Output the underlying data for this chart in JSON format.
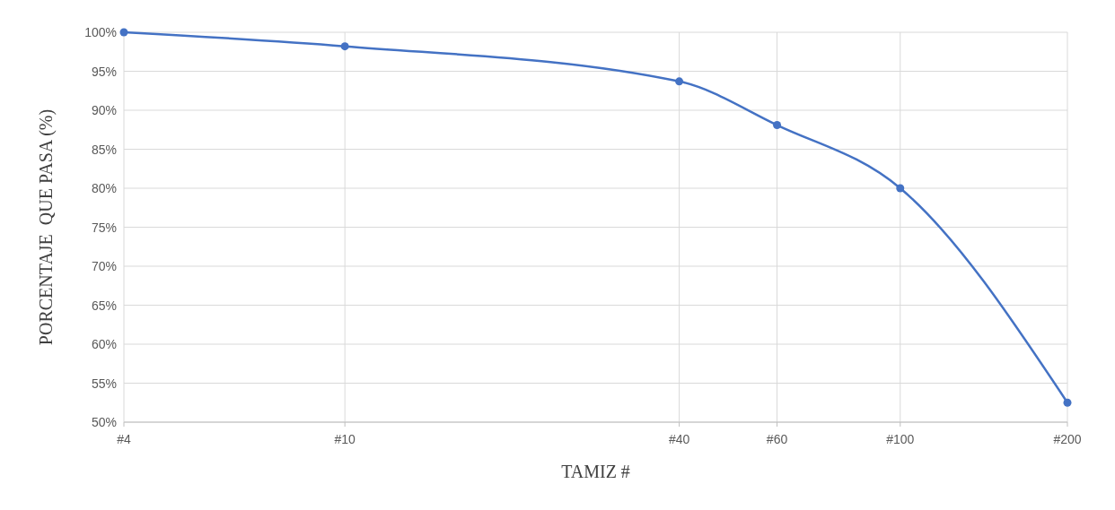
{
  "chart_data": {
    "type": "line",
    "xlabel": "TAMIZ #",
    "ylabel": "PORCENTAJE  QUE PASA (%)",
    "x": [
      4,
      10,
      40,
      60,
      100,
      200
    ],
    "series": [
      {
        "color": "#4472c4",
        "values": [
          100,
          98.2,
          93.7,
          88.1,
          80.0,
          52.5
        ]
      }
    ],
    "log": "x",
    "xlim": [
      4,
      200
    ],
    "xticks": [
      {
        "value": 4,
        "label": "#4"
      },
      {
        "value": 10,
        "label": "#10"
      },
      {
        "value": 40,
        "label": "#40"
      },
      {
        "value": 60,
        "label": "#60"
      },
      {
        "value": 100,
        "label": "#100"
      },
      {
        "value": 200,
        "label": "#200"
      }
    ],
    "ylim": [
      50,
      100
    ],
    "yticks": [
      {
        "value": 50,
        "label": "50%"
      },
      {
        "value": 55,
        "label": "55%"
      },
      {
        "value": 60,
        "label": "60%"
      },
      {
        "value": 65,
        "label": "65%"
      },
      {
        "value": 70,
        "label": "70%"
      },
      {
        "value": 75,
        "label": "75%"
      },
      {
        "value": 80,
        "label": "80%"
      },
      {
        "value": 85,
        "label": "85%"
      },
      {
        "value": 90,
        "label": "90%"
      },
      {
        "value": 95,
        "label": "95%"
      },
      {
        "value": 100,
        "label": "100%"
      }
    ],
    "grid": true,
    "marker": "circle",
    "line_style": "solid"
  }
}
